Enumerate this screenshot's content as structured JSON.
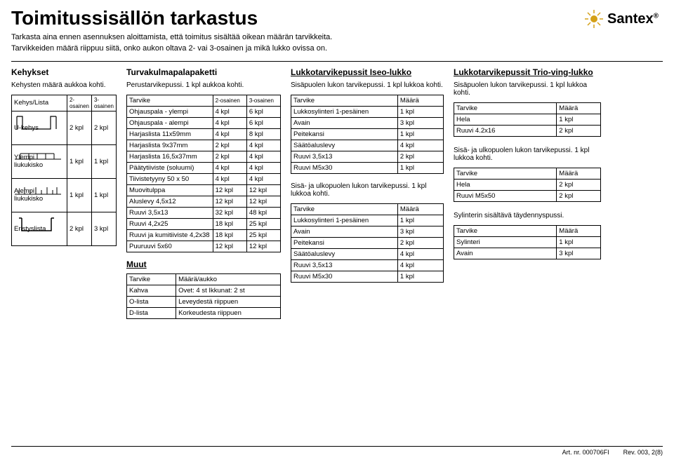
{
  "logo": {
    "name": "Santex"
  },
  "title": "Toimitussisällön tarkastus",
  "intro1": "Tarkasta aina ennen asennuksen aloittamista, että toimitus sisältää oikean määrän tarvikkeita.",
  "intro2": "Tarvikkeiden määrä riippuu siitä, onko aukon oltava 2- vai 3-osainen ja mikä lukko ovissa on.",
  "kehykset": {
    "title": "Kehykset",
    "sub": "Kehysten määrä aukkoa kohti.",
    "hdr": {
      "c0": "Kehys/Lista",
      "c1": "2-osainen",
      "c2": "3-osainen"
    },
    "rows": [
      {
        "label": "U-kehys",
        "c1": "2 kpl",
        "c2": "2 kpl"
      },
      {
        "label": "Ylempi liukukisko",
        "c1": "1 kpl",
        "c2": "1 kpl"
      },
      {
        "label": "Alempi liukukisko",
        "c1": "1 kpl",
        "c2": "1 kpl"
      },
      {
        "label": "Eristyslista",
        "c1": "2 kpl",
        "c2": "3 kpl"
      }
    ]
  },
  "turva": {
    "title": "Turvakulmapalapaketti",
    "sub": "Perustarvikepussi. 1 kpl aukkoa kohti.",
    "hdr": {
      "c0": "Tarvike",
      "c1": "2-osainen",
      "c2": "3-osainen"
    },
    "rows": [
      {
        "c0": "Ohjauspala - ylempi",
        "c1": "4 kpl",
        "c2": "6 kpl"
      },
      {
        "c0": "Ohjauspala - alempi",
        "c1": "4 kpl",
        "c2": "6 kpl"
      },
      {
        "c0": "Harjaslista 11x59mm",
        "c1": "4 kpl",
        "c2": "8 kpl"
      },
      {
        "c0": "Harjaslista 9x37mm",
        "c1": "2 kpl",
        "c2": "4 kpl"
      },
      {
        "c0": "Harjaslista 16,5x37mm",
        "c1": "2 kpl",
        "c2": "4 kpl"
      },
      {
        "c0": "Päätytiiviste (soluumi)",
        "c1": "4 kpl",
        "c2": "4 kpl"
      },
      {
        "c0": "Tiivistetyyny 50 x 50",
        "c1": "4 kpl",
        "c2": "4 kpl"
      },
      {
        "c0": "Muovitulppa",
        "c1": "12 kpl",
        "c2": "12 kpl"
      },
      {
        "c0": "Aluslevy 4,5x12",
        "c1": "12 kpl",
        "c2": "12 kpl"
      },
      {
        "c0": "Ruuvi 3,5x13",
        "c1": "32 kpl",
        "c2": "48 kpl"
      },
      {
        "c0": "Ruuvi 4,2x25",
        "c1": "18 kpl",
        "c2": "25 kpl"
      },
      {
        "c0": "Ruuvi ja kumitiiviste 4,2x38",
        "c1": "18 kpl",
        "c2": "25 kpl"
      },
      {
        "c0": "Puuruuvi 5x60",
        "c1": "12 kpl",
        "c2": "12 kpl"
      }
    ]
  },
  "muut": {
    "title": "Muut",
    "hdr": {
      "c0": "Tarvike",
      "c1": "Määrä/aukko"
    },
    "rows": [
      {
        "c0": "Kahva",
        "c1": "Ovet: 4 st    Ikkunat: 2 st"
      },
      {
        "c0": "O-lista",
        "c1": "Leveydestä riippuen"
      },
      {
        "c0": "D-lista",
        "c1": "Korkeudesta riippuen"
      }
    ]
  },
  "iseo": {
    "title": "Lukkotarvikepussit Iseo-lukko",
    "sub": "Sisäpuolen lukon tarvikepussi. 1 kpl lukkoa kohti.",
    "hdr": {
      "c0": "Tarvike",
      "c1": "Määrä"
    },
    "rows": [
      {
        "c0": "Lukkosylinteri 1-pesäinen",
        "c1": "1 kpl"
      },
      {
        "c0": "Avain",
        "c1": "3 kpl"
      },
      {
        "c0": "Peitekansi",
        "c1": "1 kpl"
      },
      {
        "c0": "Säätöaluslevy",
        "c1": "4 kpl"
      },
      {
        "c0": "Ruuvi 3,5x13",
        "c1": "2 kpl"
      },
      {
        "c0": "Ruuvi M5x30",
        "c1": "1 kpl"
      }
    ]
  },
  "iseo2": {
    "sub": "Sisä- ja ulkopuolen lukon tarvikepussi. 1 kpl lukkoa kohti.",
    "hdr": {
      "c0": "Tarvike",
      "c1": "Määrä"
    },
    "rows": [
      {
        "c0": "Lukkosylinteri 1-pesäinen",
        "c1": "1 kpl"
      },
      {
        "c0": "Avain",
        "c1": "3 kpl"
      },
      {
        "c0": "Peitekansi",
        "c1": "2 kpl"
      },
      {
        "c0": "Säätöaluslevy",
        "c1": "4 kpl"
      },
      {
        "c0": "Ruuvi 3,5x13",
        "c1": "4 kpl"
      },
      {
        "c0": "Ruuvi M5x30",
        "c1": "1 kpl"
      }
    ]
  },
  "trio": {
    "title": "Lukkotarvikepussit Trio-ving-lukko",
    "sub": "Sisäpuolen lukon tarvikepussi. 1 kpl lukkoa kohti.",
    "hdr": {
      "c0": "Tarvike",
      "c1": "Määrä"
    },
    "rows": [
      {
        "c0": "Hela",
        "c1": "1 kpl"
      },
      {
        "c0": "Ruuvi 4.2x16",
        "c1": "2 kpl"
      }
    ]
  },
  "trio2": {
    "sub": "Sisä- ja ulkopuolen lukon tarvikepussi. 1 kpl lukkoa kohti.",
    "hdr": {
      "c0": "Tarvike",
      "c1": "Määrä"
    },
    "rows": [
      {
        "c0": "Hela",
        "c1": "2 kpl"
      },
      {
        "c0": "Ruuvi M5x50",
        "c1": "2 kpl"
      }
    ]
  },
  "syl": {
    "sub": "Sylinterin sisältävä täydennyspussi.",
    "hdr": {
      "c0": "Tarvike",
      "c1": "Määrä"
    },
    "rows": [
      {
        "c0": "Sylinteri",
        "c1": "1 kpl"
      },
      {
        "c0": "Avain",
        "c1": "3 kpl"
      }
    ]
  },
  "footer": {
    "art": "Art. nr. 000706FI",
    "rev": "Rev. 003, 2(8)"
  }
}
